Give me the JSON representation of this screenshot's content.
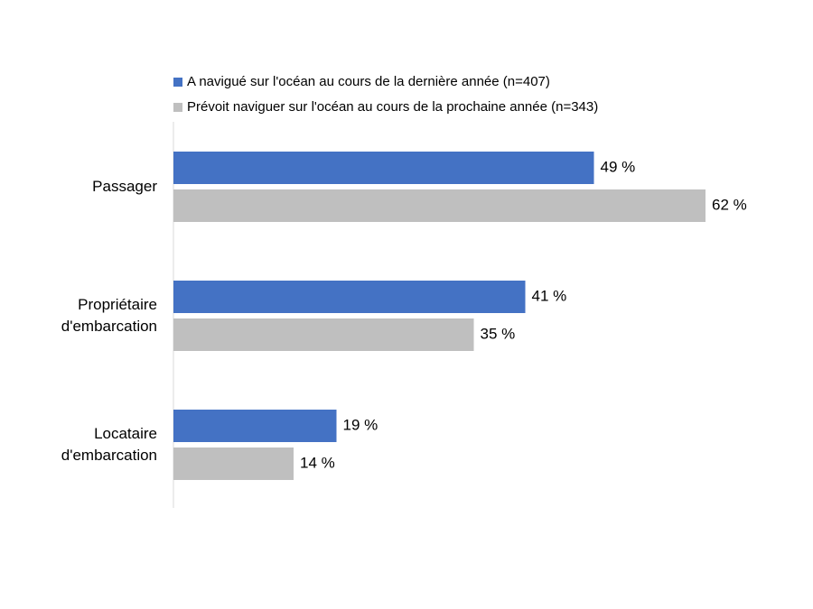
{
  "chart_data": {
    "type": "bar",
    "orientation": "horizontal",
    "categories": [
      "Passager",
      "Propriétaire d'embarcation",
      "Locataire d'embarcation"
    ],
    "series": [
      {
        "name": "A navigué sur l'océan au cours de la dernière année (n=407)",
        "color": "#4472c4",
        "values": [
          49,
          41,
          19
        ],
        "value_labels": [
          "49 %",
          "41 %",
          "19 %"
        ]
      },
      {
        "name": "Prévoit naviguer sur l'océan au cours de la prochaine année (n=343)",
        "color": "#bfbfbf",
        "values": [
          62,
          35,
          14
        ],
        "value_labels": [
          "62 %",
          "35 %",
          "14 %"
        ]
      }
    ],
    "xlim": [
      0,
      70
    ],
    "grid": false,
    "legend": "top"
  }
}
